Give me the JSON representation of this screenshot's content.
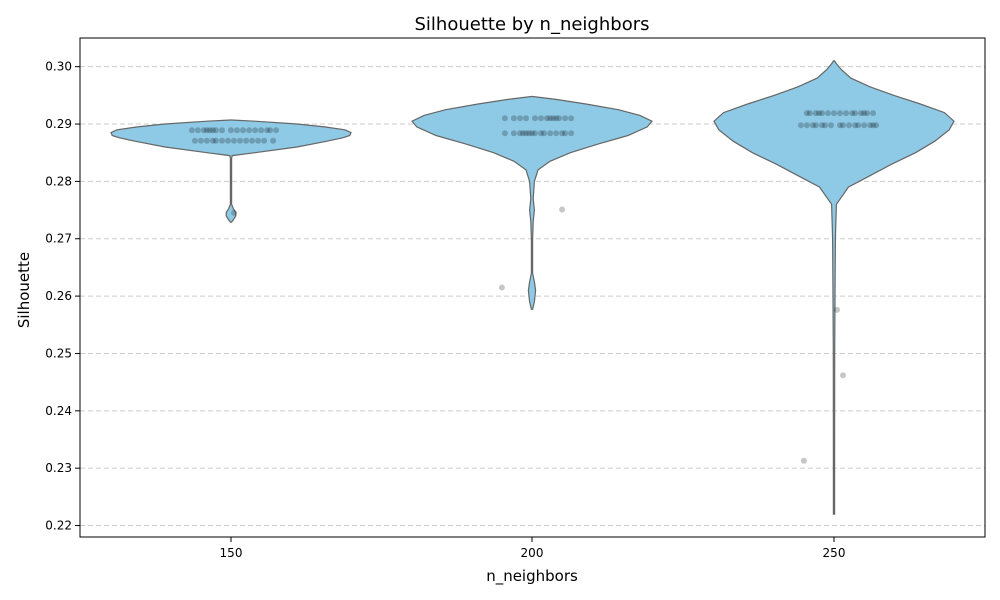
{
  "chart_data": {
    "type": "violin",
    "title": "Silhouette by n_neighbors",
    "xlabel": "n_neighbors",
    "ylabel": "Silhouette",
    "categories": [
      "150",
      "200",
      "250"
    ],
    "ylim": [
      0.218,
      0.305
    ],
    "yticks": [
      0.22,
      0.23,
      0.24,
      0.25,
      0.26,
      0.27,
      0.28,
      0.29,
      0.3
    ],
    "ytick_labels": [
      "0.22",
      "0.23",
      "0.24",
      "0.25",
      "0.26",
      "0.27",
      "0.28",
      "0.29",
      "0.30"
    ],
    "grid": true,
    "violin_color": "#8ecae6",
    "edge_color": "#666666",
    "point_color": "#000000",
    "groups": [
      {
        "category": "150",
        "y_range": [
          0.2729,
          0.2907
        ],
        "density_profile": [
          [
            0.2729,
            0.0
          ],
          [
            0.2733,
            0.02
          ],
          [
            0.274,
            0.04
          ],
          [
            0.2746,
            0.04
          ],
          [
            0.2752,
            0.02
          ],
          [
            0.276,
            0.0
          ],
          [
            0.277,
            0.0
          ],
          [
            0.278,
            0.0
          ],
          [
            0.284,
            0.0
          ],
          [
            0.2845,
            0.01
          ],
          [
            0.285,
            0.2
          ],
          [
            0.286,
            0.55
          ],
          [
            0.287,
            0.8
          ],
          [
            0.2876,
            0.93
          ],
          [
            0.288,
            0.99
          ],
          [
            0.2885,
            1.0
          ],
          [
            0.289,
            0.95
          ],
          [
            0.2895,
            0.78
          ],
          [
            0.29,
            0.55
          ],
          [
            0.2905,
            0.2
          ],
          [
            0.2907,
            0.0
          ]
        ],
        "points": [
          [
            -0.13,
            0.2889
          ],
          [
            -0.11,
            0.2889
          ],
          [
            -0.09,
            0.2889
          ],
          [
            -0.08,
            0.2889
          ],
          [
            -0.07,
            0.2889
          ],
          [
            -0.06,
            0.2889
          ],
          [
            -0.05,
            0.2889
          ],
          [
            -0.03,
            0.2889
          ],
          [
            0.0,
            0.2889
          ],
          [
            0.02,
            0.2889
          ],
          [
            0.04,
            0.2889
          ],
          [
            0.06,
            0.2889
          ],
          [
            0.08,
            0.2889
          ],
          [
            0.1,
            0.2889
          ],
          [
            0.12,
            0.2889
          ],
          [
            0.13,
            0.2889
          ],
          [
            0.15,
            0.2889
          ],
          [
            -0.12,
            0.2871
          ],
          [
            -0.1,
            0.2871
          ],
          [
            -0.08,
            0.2871
          ],
          [
            -0.06,
            0.2871
          ],
          [
            -0.05,
            0.2871
          ],
          [
            -0.03,
            0.2871
          ],
          [
            -0.01,
            0.2871
          ],
          [
            0.01,
            0.2871
          ],
          [
            0.03,
            0.2871
          ],
          [
            0.05,
            0.2871
          ],
          [
            0.07,
            0.2871
          ],
          [
            0.09,
            0.2871
          ],
          [
            0.11,
            0.2871
          ],
          [
            0.14,
            0.2871
          ],
          [
            0.01,
            0.2745
          ]
        ]
      },
      {
        "category": "200",
        "y_range": [
          0.2577,
          0.2948
        ],
        "density_profile": [
          [
            0.2577,
            0.0
          ],
          [
            0.259,
            0.02
          ],
          [
            0.261,
            0.03
          ],
          [
            0.2625,
            0.02
          ],
          [
            0.264,
            0.0
          ],
          [
            0.27,
            0.0
          ],
          [
            0.273,
            0.01
          ],
          [
            0.275,
            0.02
          ],
          [
            0.277,
            0.01
          ],
          [
            0.28,
            0.02
          ],
          [
            0.282,
            0.05
          ],
          [
            0.2835,
            0.15
          ],
          [
            0.285,
            0.32
          ],
          [
            0.2865,
            0.55
          ],
          [
            0.288,
            0.8
          ],
          [
            0.2895,
            0.96
          ],
          [
            0.2905,
            1.0
          ],
          [
            0.2915,
            0.9
          ],
          [
            0.2925,
            0.72
          ],
          [
            0.2935,
            0.45
          ],
          [
            0.2943,
            0.2
          ],
          [
            0.2948,
            0.0
          ]
        ],
        "points": [
          [
            -0.09,
            0.291
          ],
          [
            -0.06,
            0.291
          ],
          [
            -0.04,
            0.291
          ],
          [
            -0.02,
            0.291
          ],
          [
            0.01,
            0.291
          ],
          [
            0.03,
            0.291
          ],
          [
            0.05,
            0.291
          ],
          [
            0.06,
            0.291
          ],
          [
            0.07,
            0.291
          ],
          [
            0.08,
            0.291
          ],
          [
            0.09,
            0.291
          ],
          [
            0.11,
            0.291
          ],
          [
            0.13,
            0.291
          ],
          [
            -0.09,
            0.2884
          ],
          [
            -0.06,
            0.2884
          ],
          [
            -0.04,
            0.2884
          ],
          [
            -0.03,
            0.2884
          ],
          [
            -0.02,
            0.2884
          ],
          [
            -0.01,
            0.2884
          ],
          [
            0.0,
            0.2884
          ],
          [
            0.01,
            0.2884
          ],
          [
            0.03,
            0.2884
          ],
          [
            0.04,
            0.2884
          ],
          [
            0.06,
            0.2884
          ],
          [
            0.08,
            0.2884
          ],
          [
            0.1,
            0.2884
          ],
          [
            0.11,
            0.2884
          ],
          [
            0.13,
            0.2884
          ],
          [
            0.1,
            0.2751
          ],
          [
            -0.1,
            0.2615
          ]
        ]
      },
      {
        "category": "250",
        "y_range": [
          0.222,
          0.301
        ],
        "density_profile": [
          [
            0.222,
            0.0
          ],
          [
            0.23,
            0.005
          ],
          [
            0.25,
            0.006
          ],
          [
            0.26,
            0.008
          ],
          [
            0.27,
            0.012
          ],
          [
            0.276,
            0.02
          ],
          [
            0.279,
            0.12
          ],
          [
            0.281,
            0.3
          ],
          [
            0.283,
            0.48
          ],
          [
            0.285,
            0.68
          ],
          [
            0.287,
            0.84
          ],
          [
            0.289,
            0.96
          ],
          [
            0.2905,
            1.0
          ],
          [
            0.292,
            0.92
          ],
          [
            0.2935,
            0.72
          ],
          [
            0.295,
            0.5
          ],
          [
            0.2965,
            0.3
          ],
          [
            0.298,
            0.14
          ],
          [
            0.2995,
            0.06
          ],
          [
            0.3005,
            0.02
          ],
          [
            0.301,
            0.0
          ]
        ],
        "points": [
          [
            -0.09,
            0.2919
          ],
          [
            -0.08,
            0.2919
          ],
          [
            -0.06,
            0.2919
          ],
          [
            -0.05,
            0.2919
          ],
          [
            -0.04,
            0.2919
          ],
          [
            -0.02,
            0.2919
          ],
          [
            0.0,
            0.2919
          ],
          [
            0.02,
            0.2919
          ],
          [
            0.04,
            0.2919
          ],
          [
            0.06,
            0.2919
          ],
          [
            0.07,
            0.2919
          ],
          [
            0.09,
            0.2919
          ],
          [
            0.1,
            0.2919
          ],
          [
            0.11,
            0.2919
          ],
          [
            0.13,
            0.2919
          ],
          [
            -0.11,
            0.2898
          ],
          [
            -0.09,
            0.2898
          ],
          [
            -0.07,
            0.2898
          ],
          [
            -0.06,
            0.2898
          ],
          [
            -0.04,
            0.2898
          ],
          [
            -0.03,
            0.2898
          ],
          [
            -0.01,
            0.2898
          ],
          [
            0.02,
            0.2898
          ],
          [
            0.03,
            0.2898
          ],
          [
            0.05,
            0.2898
          ],
          [
            0.07,
            0.2898
          ],
          [
            0.08,
            0.2898
          ],
          [
            0.1,
            0.2898
          ],
          [
            0.12,
            0.2898
          ],
          [
            0.13,
            0.2898
          ],
          [
            0.14,
            0.2898
          ],
          [
            0.01,
            0.2576
          ],
          [
            0.03,
            0.2462
          ],
          [
            -0.1,
            0.2313
          ]
        ]
      }
    ]
  }
}
